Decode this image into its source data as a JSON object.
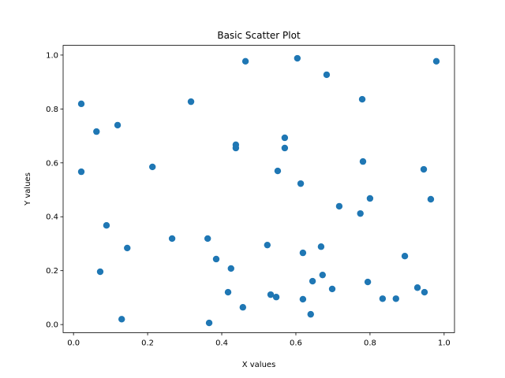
{
  "chart_data": {
    "type": "scatter",
    "title": "Basic Scatter Plot",
    "x_label": "X values",
    "y_label": "Y values",
    "color": "#1f77b4",
    "x": [
      0.021,
      0.062,
      0.119,
      0.021,
      0.213,
      0.317,
      0.464,
      0.604,
      0.683,
      0.979,
      0.779,
      0.438,
      0.438,
      0.57,
      0.57,
      0.551,
      0.613,
      0.781,
      0.945,
      0.8,
      0.964,
      0.717,
      0.774,
      0.089,
      0.145,
      0.266,
      0.362,
      0.385,
      0.072,
      0.425,
      0.523,
      0.619,
      0.668,
      0.894,
      0.672,
      0.645,
      0.794,
      0.417,
      0.532,
      0.547,
      0.619,
      0.698,
      0.834,
      0.87,
      0.928,
      0.947,
      0.457,
      0.64,
      0.13,
      0.366
    ],
    "y": [
      0.819,
      0.716,
      0.74,
      0.567,
      0.585,
      0.827,
      0.977,
      0.988,
      0.927,
      0.977,
      0.836,
      0.667,
      0.655,
      0.693,
      0.655,
      0.57,
      0.523,
      0.605,
      0.576,
      0.468,
      0.465,
      0.439,
      0.412,
      0.368,
      0.284,
      0.319,
      0.319,
      0.243,
      0.196,
      0.208,
      0.295,
      0.266,
      0.289,
      0.254,
      0.184,
      0.161,
      0.158,
      0.12,
      0.111,
      0.102,
      0.094,
      0.132,
      0.096,
      0.096,
      0.137,
      0.12,
      0.064,
      0.038,
      0.02,
      0.006
    ],
    "xlim": [
      -0.028,
      1.028
    ],
    "ylim": [
      -0.03,
      1.036
    ],
    "xticks": [
      0.0,
      0.2,
      0.4,
      0.6,
      0.8,
      1.0
    ],
    "yticks": [
      0.0,
      0.2,
      0.4,
      0.6,
      0.8,
      1.0
    ]
  }
}
